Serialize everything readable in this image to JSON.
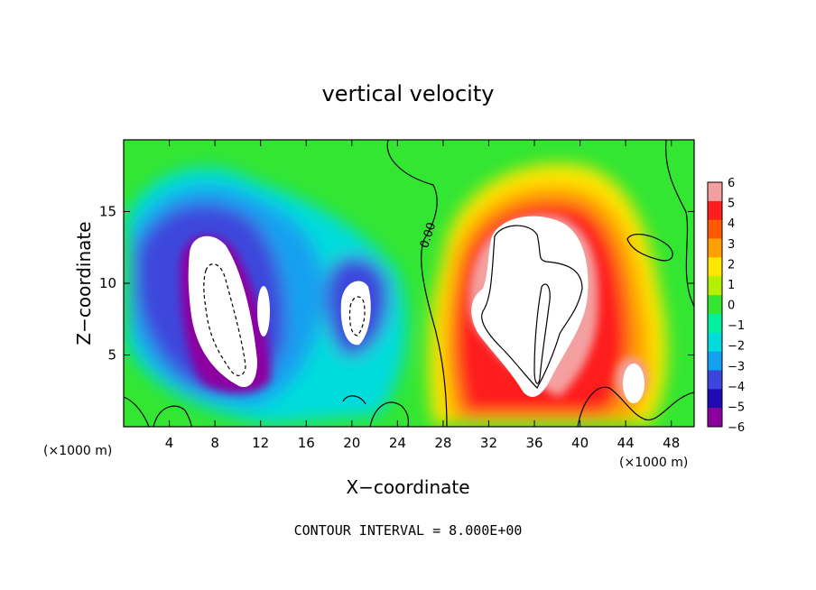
{
  "chart_data": {
    "type": "heatmap",
    "title": "vertical velocity",
    "xlabel": "X−coordinate",
    "ylabel": "Z−coordinate",
    "x_unit_left": "(×1000 m)",
    "x_unit_right": "(×1000 m)",
    "xlim": [
      0,
      50
    ],
    "ylim": [
      0,
      20
    ],
    "x_ticks": [
      4,
      8,
      12,
      16,
      20,
      24,
      28,
      32,
      36,
      40,
      44,
      48
    ],
    "y_ticks": [
      5,
      10,
      15
    ],
    "contour_label": "0.00",
    "footer": "CONTOUR INTERVAL = 8.000E+00",
    "colorbar": {
      "range": [
        -6,
        6
      ],
      "ticks": [
        "6",
        "5",
        "4",
        "3",
        "2",
        "1",
        "0",
        "−1",
        "−2",
        "−3",
        "−4",
        "−5",
        "−6"
      ],
      "colors": [
        "#f4a0a0",
        "#ff1e1e",
        "#ff5a00",
        "#ffa000",
        "#ffe600",
        "#b4f000",
        "#32e632",
        "#00f0a0",
        "#00dcdc",
        "#14a0f0",
        "#3c46dc",
        "#1e0ab4",
        "#8c00a0"
      ]
    },
    "features": [
      {
        "name": "downdraft-west",
        "x": 9,
        "z": 8,
        "w": -12
      },
      {
        "name": "downdraft-core-west",
        "x": 8,
        "z": 8.5,
        "w": -14
      },
      {
        "name": "downdraft-mid",
        "x": 20,
        "z": 8.5,
        "w": -10
      },
      {
        "name": "updraft-main",
        "x": 36,
        "z": 9.5,
        "w": 14
      },
      {
        "name": "updraft-east",
        "x": 44.5,
        "z": 3,
        "w": 8
      }
    ]
  }
}
